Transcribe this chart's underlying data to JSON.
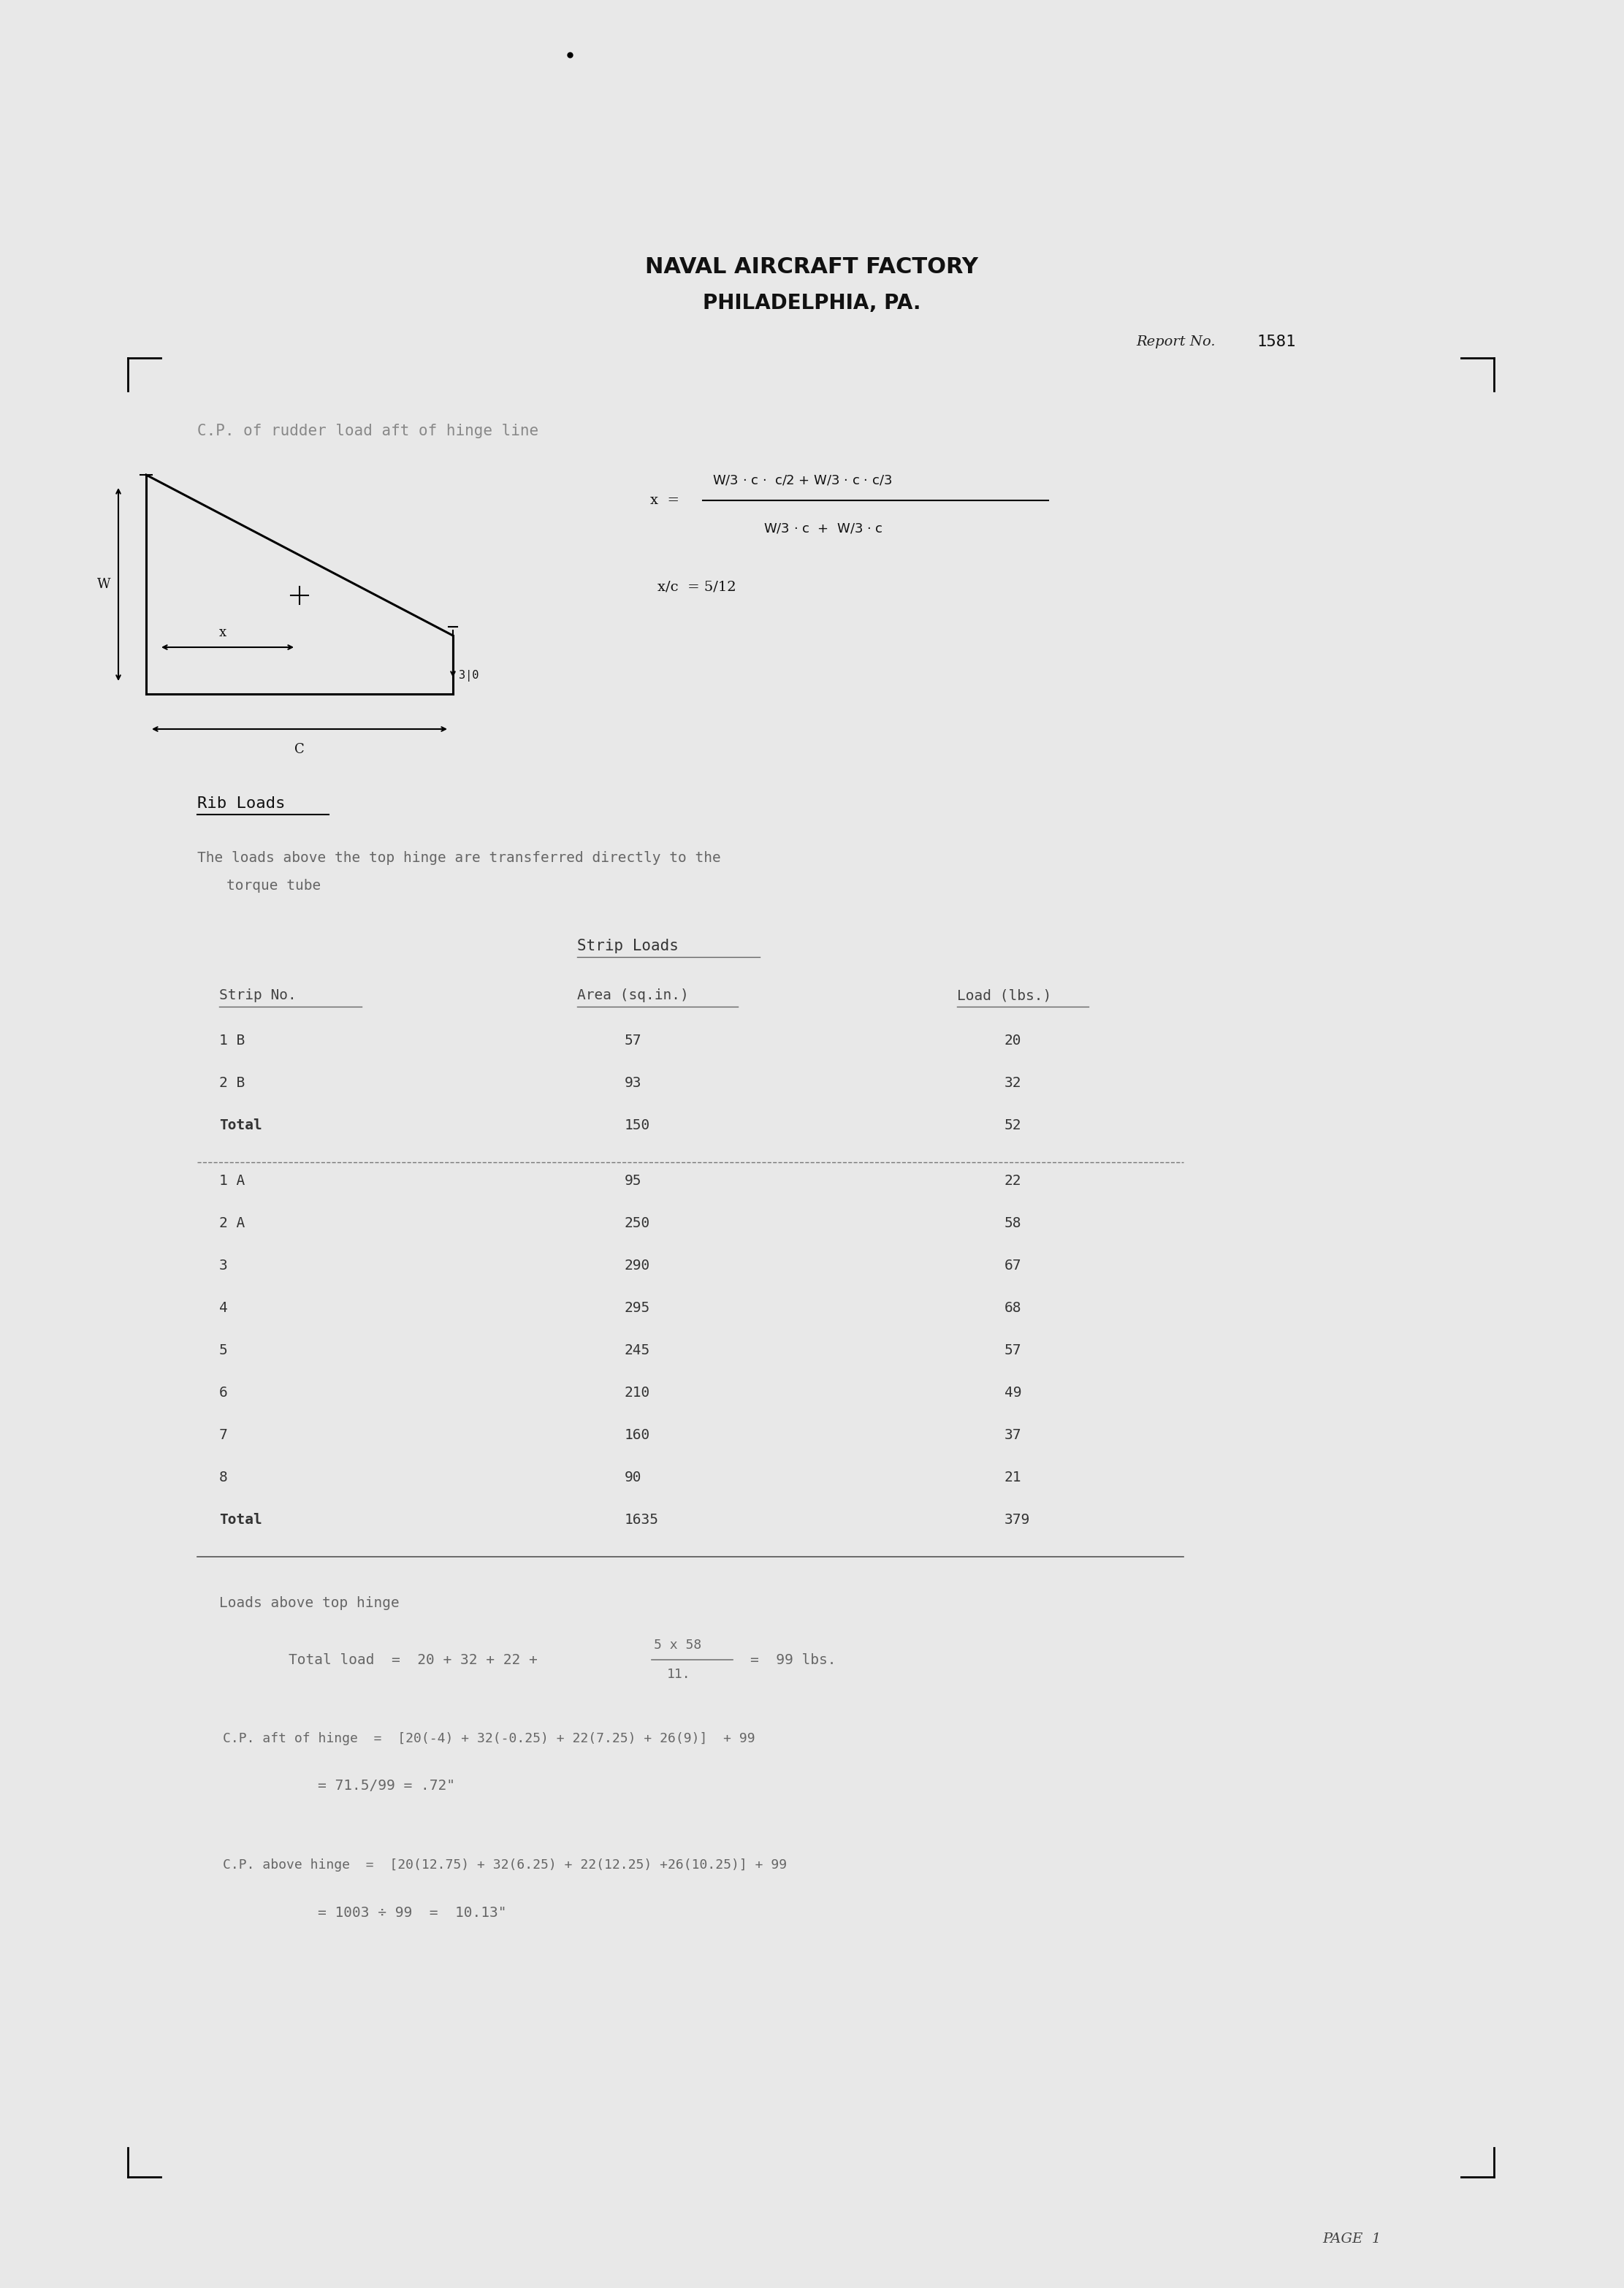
{
  "bg_color": "#e8e8e8",
  "title_line1": "NAVAL AIRCRAFT FACTORY",
  "title_line2": "PHILADELPHIA, PA.",
  "report_label": "Report No.",
  "report_no": "1581",
  "section_title": "C.P. of rudder load aft of hinge line",
  "rib_loads_title": "Rib Loads",
  "rib_loads_desc1": "The loads above the top hinge are transferred directly to the",
  "rib_loads_desc2": "torque tube",
  "strip_loads_title": "Strip Loads",
  "col1_header": "Strip No.",
  "col2_header": "Area (sq.in.)",
  "col3_header": "Load (lbs.)",
  "table_B": [
    [
      "1 B",
      "57",
      "20"
    ],
    [
      "2 B",
      "93",
      "32"
    ],
    [
      "Total",
      "150",
      "52"
    ]
  ],
  "table_A": [
    [
      "1 A",
      "95",
      "22"
    ],
    [
      "2 A",
      "250",
      "58"
    ],
    [
      "3",
      "290",
      "67"
    ],
    [
      "4",
      "295",
      "68"
    ],
    [
      "5",
      "245",
      "57"
    ],
    [
      "6",
      "210",
      "49"
    ],
    [
      "7",
      "160",
      "37"
    ],
    [
      "8",
      "90",
      "21"
    ],
    [
      "Total",
      "1635",
      "379"
    ]
  ],
  "loads_above_hinge_title": "Loads above top hinge",
  "loads_calc2_result": "= 71.5/99 = .72\"",
  "loads_calc3_result": "= 1003 ÷ 99  =  10.13\"",
  "page_label": "PAGE  1"
}
